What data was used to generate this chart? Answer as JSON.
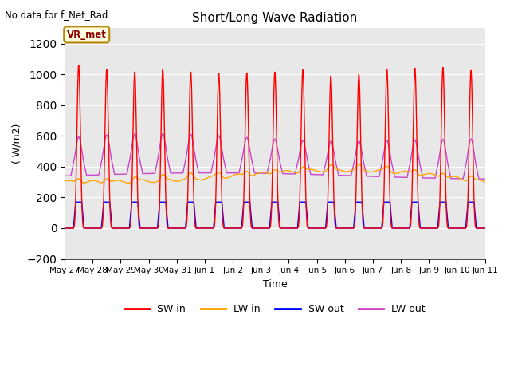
{
  "title": "Short/Long Wave Radiation",
  "xlabel": "Time",
  "ylabel": "( W/m2)",
  "ylim": [
    -200,
    1300
  ],
  "yticks": [
    -200,
    0,
    200,
    400,
    600,
    800,
    1000,
    1200
  ],
  "x_labels": [
    "May 27",
    "May 28",
    "May 29",
    "May 30",
    "May 31",
    "Jun 1",
    "Jun 2",
    "Jun 3",
    "Jun 4",
    "Jun 5",
    "Jun 6",
    "Jun 7",
    "Jun 8",
    "Jun 9",
    "Jun 10",
    "Jun 11"
  ],
  "annotation_text": "No data for f_Net_Rad",
  "legend_label": "VR_met",
  "colors": {
    "SW_in": "#ff0000",
    "LW_in": "#ffa500",
    "SW_out": "#0000ff",
    "LW_out": "#cc44cc"
  },
  "n_days": 15,
  "points_per_day": 288
}
